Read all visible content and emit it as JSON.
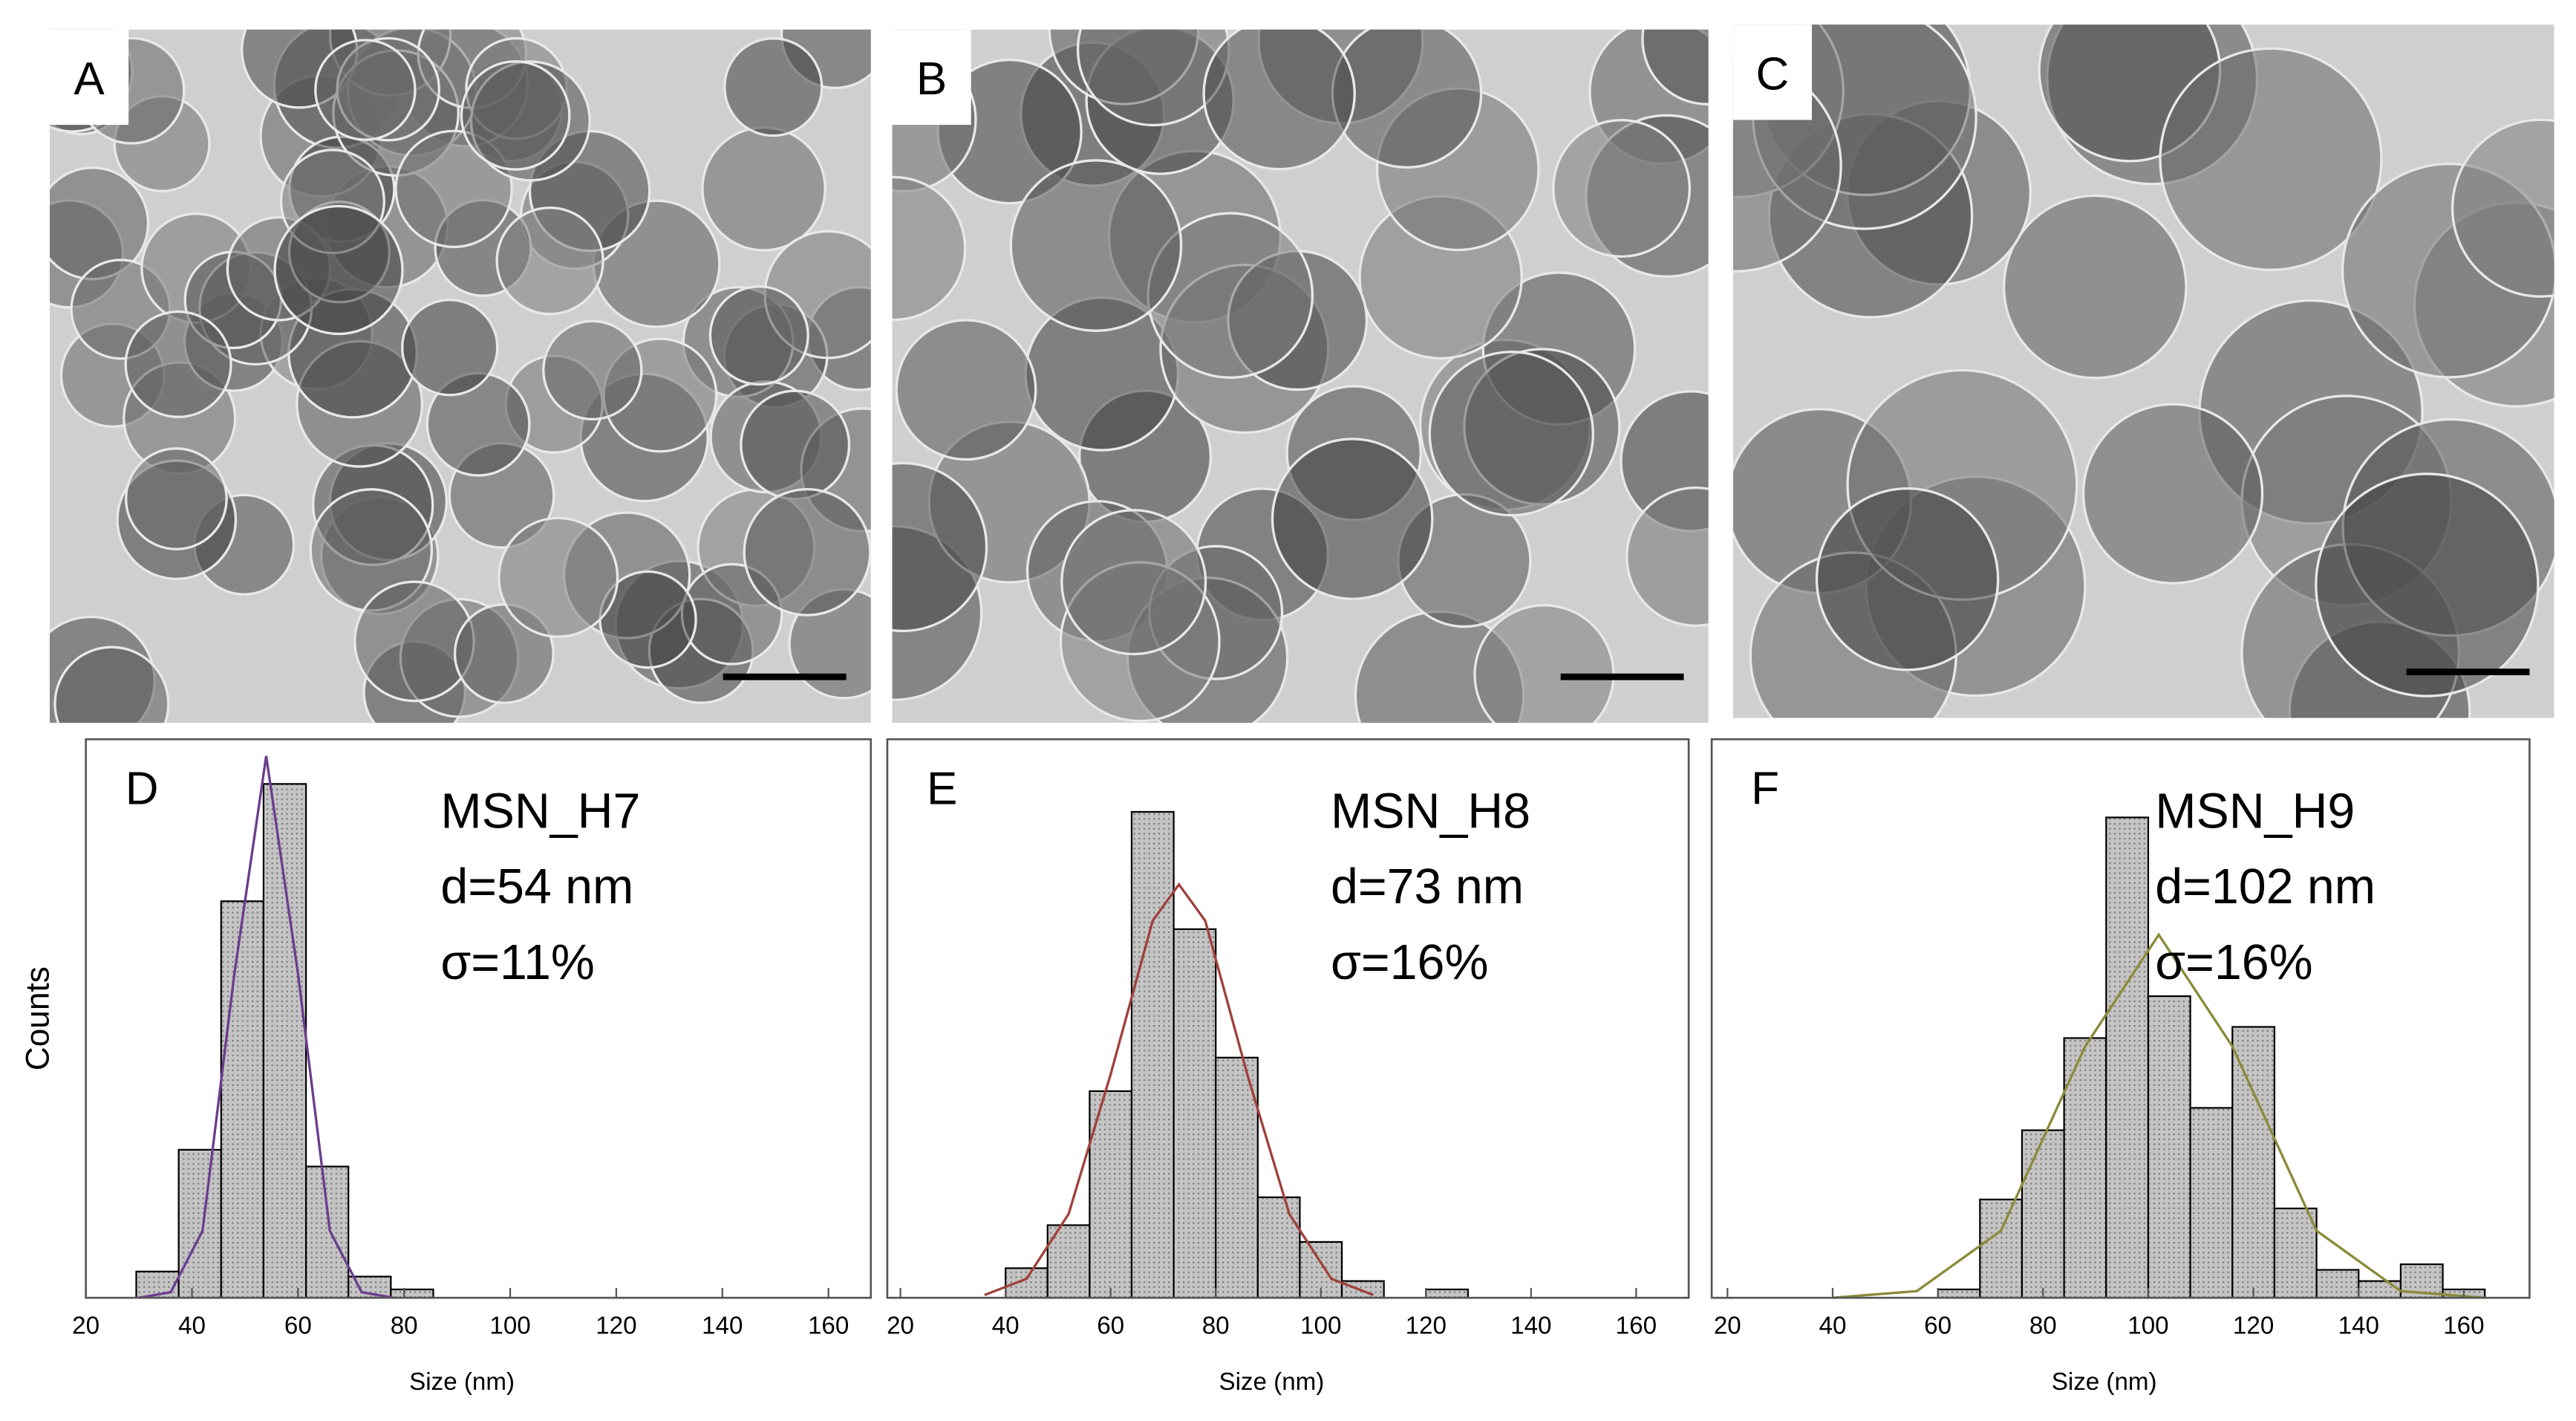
{
  "images": [
    {
      "label": "A"
    },
    {
      "label": "B"
    },
    {
      "label": "C"
    }
  ],
  "chart_data": [
    {
      "type": "histogram",
      "panel_label": "D",
      "annotations": [
        "MSN_H7",
        "d=54 nm",
        "σ=11%"
      ],
      "xlabel": "Size (nm)",
      "ylabel": "Counts",
      "bins": [
        29.5,
        37.5,
        45.5,
        53.5,
        61.5,
        69.5,
        77.5,
        85.5
      ],
      "values": [
        4.7,
        26.5,
        71,
        92,
        23.5,
        3.8,
        1.5
      ],
      "color": "#b8b8b8",
      "fit": {
        "x": [
          30,
          36,
          42,
          48,
          54,
          60,
          66,
          72,
          78
        ],
        "values": [
          0,
          1,
          12,
          58,
          97,
          58,
          12,
          1,
          0
        ],
        "color": "#6a3d8f"
      },
      "xlim": [
        20,
        168
      ],
      "ylim": [
        0,
        100
      ],
      "xticks": [
        20,
        40,
        60,
        80,
        100,
        120,
        140,
        160
      ]
    },
    {
      "type": "histogram",
      "panel_label": "E",
      "annotations": [
        "MSN_H8",
        "d=73 nm",
        "σ=16%"
      ],
      "xlabel": "Size (nm)",
      "bins": [
        40,
        48,
        56,
        64,
        72,
        80,
        88,
        96,
        104,
        112,
        120,
        128
      ],
      "values": [
        5.3,
        13,
        37,
        87,
        66,
        43,
        18,
        10,
        3,
        0,
        1.5
      ],
      "color": "#b8b8b8",
      "fit": {
        "x": [
          36,
          44,
          52,
          60,
          68,
          73,
          78,
          86,
          94,
          102,
          110
        ],
        "values": [
          0.5,
          3.4,
          15,
          40,
          67.5,
          74,
          67.5,
          40,
          15,
          3.4,
          0.5
        ],
        "color": "#a0403a"
      },
      "xlim": [
        17.5,
        170
      ],
      "ylim": [
        0,
        100
      ],
      "xticks": [
        20,
        40,
        60,
        80,
        100,
        120,
        140,
        160
      ]
    },
    {
      "type": "histogram",
      "panel_label": "F",
      "annotations": [
        "MSN_H9",
        "d=102 nm",
        "σ=16%"
      ],
      "xlabel": "Size (nm)",
      "bins": [
        60,
        68,
        76,
        84,
        92,
        100,
        108,
        116,
        124,
        132,
        140,
        148,
        156,
        164
      ],
      "values": [
        1.5,
        17.6,
        30,
        46.5,
        86,
        54,
        34,
        48.5,
        16,
        5,
        3,
        6,
        1.5
      ],
      "color": "#b8b8b8",
      "fit": {
        "x": [
          40,
          56,
          72,
          88,
          102,
          116,
          132,
          148,
          164
        ],
        "values": [
          0,
          1.2,
          12,
          45,
          65,
          45,
          12,
          1.2,
          0
        ],
        "color": "#8a8a3a"
      },
      "xlim": [
        17,
        172.5
      ],
      "ylim": [
        0,
        100
      ],
      "xticks": [
        20,
        40,
        60,
        80,
        100,
        120,
        140,
        160
      ]
    }
  ]
}
